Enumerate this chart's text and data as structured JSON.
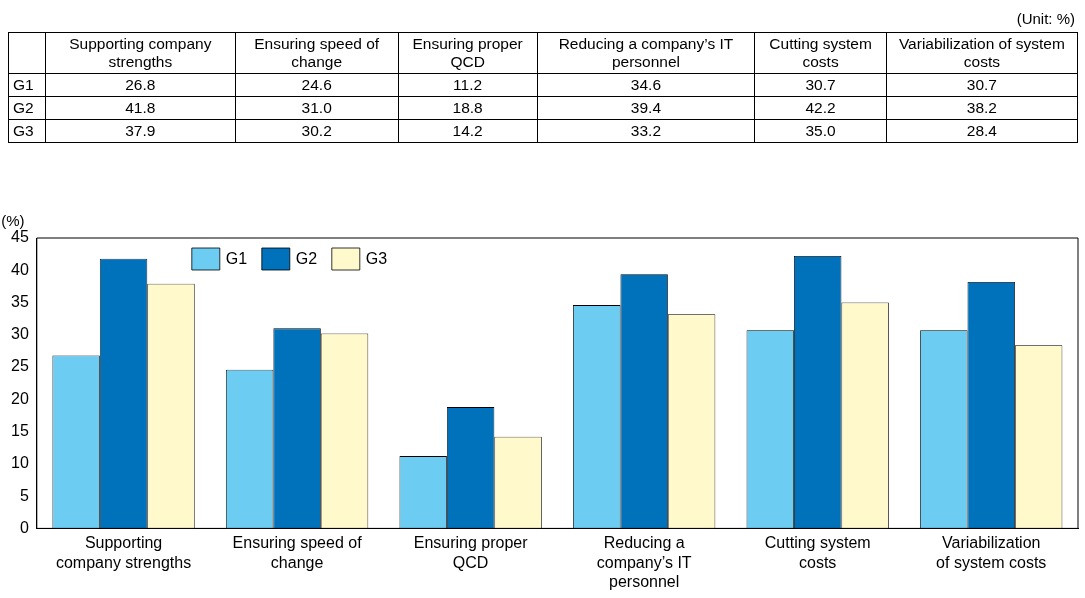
{
  "chart_data": {
    "type": "bar",
    "ylabel": "(%)",
    "annotations": [
      "(Unit: %)"
    ],
    "categories": [
      "Supporting company strengths",
      "Ensuring speed of change",
      "Ensuring proper QCD",
      "Reducing a company’s IT personnel",
      "Cutting system costs",
      "Variabilization of system costs"
    ],
    "series": [
      {
        "name": "G1",
        "color": "#6cccf2",
        "values": [
          26.8,
          24.6,
          11.2,
          34.6,
          30.7,
          30.7
        ],
        "value_labels": [
          "26.8",
          "24.6",
          "11.2",
          "34.6",
          "30.7",
          "30.7"
        ]
      },
      {
        "name": "G2",
        "color": "#0071bb",
        "values": [
          41.8,
          31.0,
          18.8,
          39.4,
          42.2,
          38.2
        ],
        "value_labels": [
          "41.8",
          "31.0",
          "18.8",
          "39.4",
          "42.2",
          "38.2"
        ]
      },
      {
        "name": "G3",
        "color": "#fff9cc",
        "values": [
          37.9,
          30.2,
          14.2,
          33.2,
          35.0,
          28.4
        ],
        "value_labels": [
          "37.9",
          "30.2",
          "14.2",
          "33.2",
          "35.0",
          "28.4"
        ]
      }
    ],
    "ylim": [
      0,
      45
    ],
    "yticks": [
      0,
      5,
      10,
      15,
      20,
      25,
      30,
      35,
      40,
      45
    ],
    "grid": false,
    "legend": "top left"
  }
}
